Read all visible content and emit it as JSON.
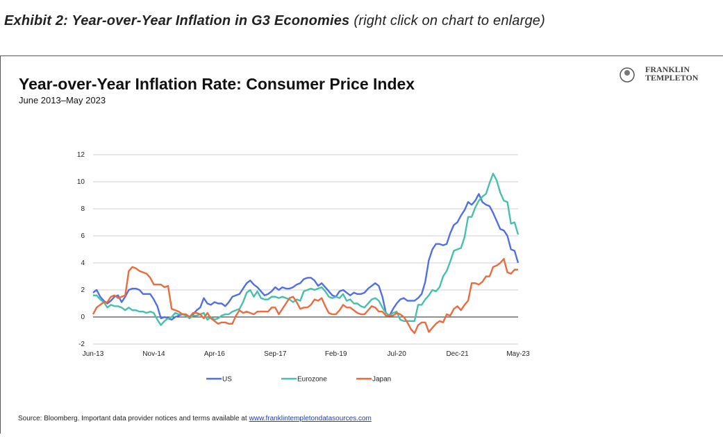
{
  "exhibit": {
    "title": "Exhibit 2: Year-over-Year Inflation in G3 Economies",
    "note": "(right click on chart to enlarge)"
  },
  "logo": {
    "line1": "FRANKLIN",
    "line2": "TEMPLETON"
  },
  "source": {
    "text": "Source: Bloomberg. Important data provider notices and terms available at",
    "link": "www.franklintempletondatasources.com"
  },
  "chart_data": {
    "type": "line",
    "title": "Year-over-Year Inflation Rate: Consumer Price Index",
    "subtitle": "June 2013–May 2023",
    "categories": [
      "Jun-13",
      null,
      null,
      null,
      null,
      null,
      null,
      null,
      null,
      null,
      null,
      null,
      null,
      null,
      null,
      null,
      null,
      "Nov-14",
      null,
      null,
      null,
      null,
      null,
      null,
      null,
      null,
      null,
      null,
      null,
      null,
      null,
      null,
      null,
      null,
      "Apr-16",
      null,
      null,
      null,
      null,
      null,
      null,
      null,
      null,
      null,
      null,
      null,
      null,
      null,
      null,
      null,
      null,
      "Sep-17",
      null,
      null,
      null,
      null,
      null,
      null,
      null,
      null,
      null,
      null,
      null,
      null,
      null,
      null,
      null,
      null,
      "Feb-19",
      null,
      null,
      null,
      null,
      null,
      null,
      null,
      null,
      null,
      null,
      null,
      null,
      null,
      null,
      null,
      null,
      "Jul-20",
      null,
      null,
      null,
      null,
      null,
      null,
      null,
      null,
      null,
      null,
      null,
      null,
      null,
      null,
      null,
      null,
      "Dec-21",
      null,
      null,
      null,
      null,
      null,
      null,
      null,
      null,
      null,
      null,
      null,
      null,
      null,
      null,
      null,
      null,
      "May-23"
    ],
    "ylim": [
      -2,
      12
    ],
    "yticks": [
      -2,
      0,
      2,
      4,
      6,
      8,
      10,
      12
    ],
    "grid": true,
    "legend": "bottom",
    "series": [
      {
        "name": "US",
        "color": "#4f6ee8",
        "values": [
          1.8,
          2.0,
          1.5,
          1.2,
          1.0,
          1.2,
          1.5,
          1.6,
          1.1,
          1.5,
          2.0,
          2.1,
          2.1,
          2.0,
          1.7,
          1.7,
          1.7,
          1.3,
          0.8,
          -0.1,
          0.0,
          -0.1,
          -0.2,
          0.0,
          0.1,
          0.2,
          0.2,
          0.0,
          0.2,
          0.5,
          0.7,
          1.4,
          1.0,
          0.9,
          1.1,
          1.0,
          1.0,
          0.8,
          1.1,
          1.5,
          1.6,
          1.7,
          2.1,
          2.5,
          2.7,
          2.4,
          2.2,
          1.9,
          1.6,
          1.7,
          1.9,
          2.2,
          2.0,
          2.2,
          2.1,
          2.1,
          2.2,
          2.4,
          2.5,
          2.8,
          2.9,
          2.9,
          2.7,
          2.3,
          2.5,
          2.2,
          1.9,
          1.6,
          1.5,
          1.9,
          2.0,
          1.8,
          1.6,
          1.8,
          1.7,
          1.7,
          1.8,
          2.1,
          2.3,
          2.5,
          2.3,
          1.5,
          0.3,
          0.1,
          0.6,
          1.0,
          1.3,
          1.4,
          1.2,
          1.2,
          1.2,
          1.4,
          1.7,
          2.6,
          4.2,
          5.0,
          5.4,
          5.4,
          5.3,
          5.4,
          6.2,
          6.8,
          7.0,
          7.5,
          7.9,
          8.5,
          8.3,
          8.6,
          9.1,
          8.5,
          8.3,
          8.2,
          7.7,
          7.1,
          6.5,
          6.4,
          6.0,
          5.0,
          4.9,
          4.0
        ]
      },
      {
        "name": "Eurozone",
        "color": "#45c0ae",
        "values": [
          1.6,
          1.6,
          1.3,
          1.1,
          0.7,
          0.9,
          0.8,
          0.8,
          0.7,
          0.5,
          0.7,
          0.5,
          0.5,
          0.4,
          0.4,
          0.3,
          0.4,
          0.3,
          -0.2,
          -0.6,
          -0.3,
          -0.1,
          0.0,
          0.3,
          0.2,
          0.2,
          0.1,
          -0.1,
          0.1,
          0.1,
          0.2,
          0.3,
          -0.2,
          0.0,
          -0.2,
          -0.1,
          0.1,
          0.2,
          0.2,
          0.4,
          0.5,
          0.6,
          1.1,
          1.8,
          2.0,
          1.5,
          1.9,
          1.4,
          1.3,
          1.3,
          1.5,
          1.5,
          1.4,
          1.5,
          1.4,
          1.3,
          1.1,
          1.3,
          1.2,
          1.9,
          2.0,
          2.1,
          2.0,
          2.1,
          2.2,
          1.9,
          1.5,
          1.4,
          1.5,
          1.4,
          1.7,
          1.2,
          1.3,
          1.0,
          1.0,
          0.8,
          0.7,
          1.0,
          1.3,
          1.4,
          1.2,
          0.7,
          0.3,
          0.1,
          0.3,
          0.4,
          -0.2,
          -0.3,
          -0.3,
          -0.3,
          -0.3,
          0.9,
          0.9,
          1.3,
          1.6,
          2.0,
          1.9,
          2.2,
          3.0,
          3.4,
          4.1,
          4.9,
          5.0,
          5.1,
          5.9,
          7.4,
          7.4,
          8.1,
          8.6,
          8.9,
          9.1,
          9.9,
          10.6,
          10.1,
          9.2,
          8.6,
          8.5,
          6.9,
          7.0,
          6.1
        ]
      },
      {
        "name": "Japan",
        "color": "#ec6a3c",
        "values": [
          0.2,
          0.7,
          0.9,
          1.1,
          1.1,
          1.5,
          1.6,
          1.4,
          1.5,
          1.6,
          3.4,
          3.7,
          3.6,
          3.4,
          3.3,
          3.2,
          2.9,
          2.4,
          2.4,
          2.4,
          2.2,
          2.3,
          0.6,
          0.5,
          0.4,
          0.2,
          0.2,
          0.0,
          0.3,
          0.3,
          0.2,
          -0.1,
          0.3,
          -0.1,
          -0.3,
          -0.5,
          -0.4,
          -0.4,
          -0.5,
          -0.5,
          0.1,
          0.5,
          0.3,
          0.4,
          0.3,
          0.2,
          0.4,
          0.4,
          0.4,
          0.4,
          0.7,
          0.7,
          0.2,
          0.6,
          1.0,
          1.4,
          1.5,
          1.1,
          0.6,
          0.7,
          0.7,
          0.9,
          1.3,
          1.2,
          1.4,
          0.8,
          0.3,
          0.2,
          0.2,
          0.5,
          0.9,
          0.7,
          0.7,
          0.5,
          0.3,
          0.2,
          0.2,
          0.5,
          0.8,
          0.7,
          0.4,
          0.4,
          0.1,
          0.1,
          0.1,
          0.3,
          0.2,
          0.0,
          -0.4,
          -0.9,
          -1.2,
          -0.6,
          -0.4,
          -0.4,
          -1.1,
          -0.8,
          -0.5,
          -0.3,
          -0.4,
          0.2,
          0.1,
          0.6,
          0.8,
          0.5,
          0.9,
          1.2,
          2.5,
          2.5,
          2.4,
          2.6,
          3.0,
          3.0,
          3.7,
          3.8,
          4.0,
          4.3,
          3.3,
          3.2,
          3.5,
          3.5
        ]
      }
    ]
  }
}
